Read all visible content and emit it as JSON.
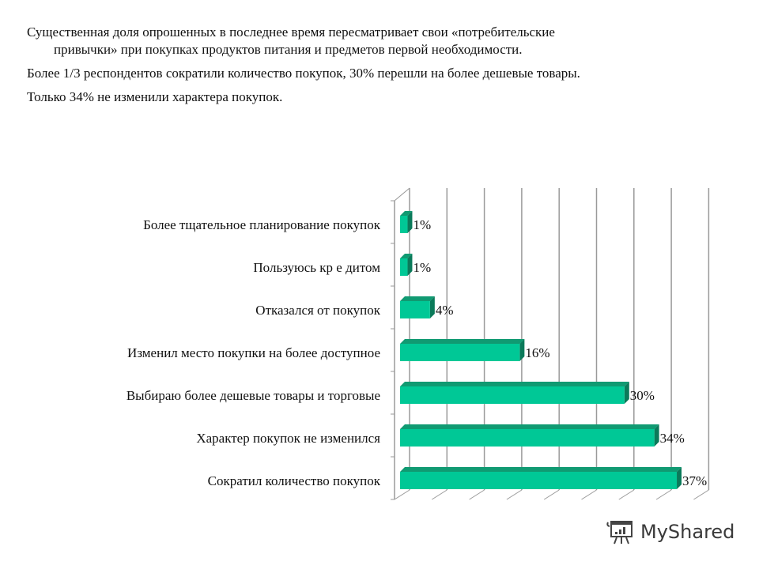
{
  "intro": {
    "line1a": "Существенная  доля опрошенных в последнее время пересматривает  свои «потребительские",
    "line1b": "привычки» при покупках продуктов питания  и предметов первой необходимости.",
    "line2": "Более 1/3 респондентов сократили количество покупок, 30% перешли на более дешевые товары.",
    "line3": "Только 34% не изменили характера покупок."
  },
  "watermark": {
    "text": "MyShared",
    "icon": "presentation-board-icon"
  },
  "colors": {
    "bar_front": "#00c896",
    "bar_top": "#109a72",
    "bar_side": "#0b7a5a",
    "grid": "#9a9a9a"
  },
  "chart_data": {
    "type": "bar",
    "orientation": "horizontal",
    "style": "3d-clustered",
    "title": "",
    "xlabel": "",
    "ylabel": "",
    "xlim": [
      0,
      40
    ],
    "grid": true,
    "gridline_step": 5,
    "legend": null,
    "categories": [
      "Более тщательное планирование покупок",
      "Пользуюсь кредитом",
      "Отказался от покупок",
      "Изменил место покупки на более доступное",
      "Выбираю более дешевые товары и торговые",
      "Характер покупок не изменился",
      "Сократил количество покупок"
    ],
    "category_display": [
      "Более тщательное планирование покупок",
      "Пользуюсь кр е дитом",
      "Отказался  от покупок",
      "Изменил место покупки на более доступное",
      "Выбираю более дешевые  товары и торговые",
      "Характер  покупок не изменился",
      "Сократил количество покупок"
    ],
    "values": [
      1,
      1,
      4,
      16,
      30,
      34,
      37
    ],
    "value_labels": [
      "1%",
      "1%",
      "4%",
      "16%",
      "30%",
      "34%",
      "37%"
    ],
    "unit": "%"
  }
}
